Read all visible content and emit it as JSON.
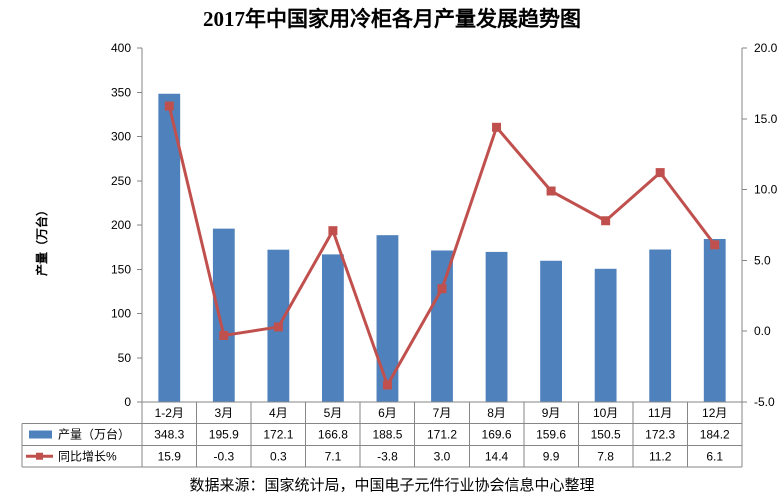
{
  "chart_data": {
    "type": "bar",
    "title": "2017年中国家用冷柜各月产量发展趋势图",
    "ylabel": "产量（万台）",
    "categories": [
      "1-2月",
      "3月",
      "4月",
      "5月",
      "6月",
      "7月",
      "8月",
      "9月",
      "10月",
      "11月",
      "12月"
    ],
    "series": [
      {
        "name": "产量（万台）",
        "type": "bar",
        "axis": "left",
        "color": "#4F81BD",
        "values": [
          348.3,
          195.9,
          172.1,
          166.8,
          188.5,
          171.2,
          169.6,
          159.6,
          150.5,
          172.3,
          184.2
        ]
      },
      {
        "name": "同比增长%",
        "type": "line",
        "axis": "right",
        "marker": "square",
        "color": "#C0504D",
        "values": [
          15.9,
          -0.3,
          0.3,
          7.1,
          -3.8,
          3.0,
          14.4,
          9.9,
          7.8,
          11.2,
          6.1
        ]
      }
    ],
    "ylim": [
      0,
      400
    ],
    "yticks": [
      0,
      50,
      100,
      150,
      200,
      250,
      300,
      350,
      400
    ],
    "y2lim": [
      -5,
      20
    ],
    "y2ticks": [
      -5,
      0,
      5,
      10,
      15,
      20
    ],
    "grid": false,
    "legend": "bottom",
    "data_table": true
  },
  "source": "数据来源：国家统计局，中国电子元件行业协会信息中心整理"
}
